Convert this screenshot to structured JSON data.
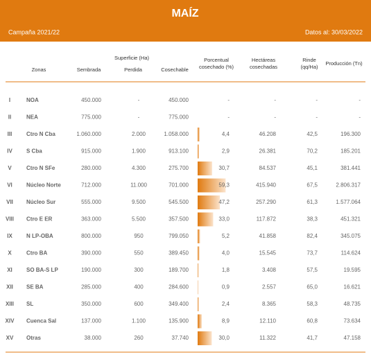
{
  "header": {
    "title": "MAÍZ",
    "campaign": "Campaña 2021/22",
    "date": "Datos al: 30/03/2022"
  },
  "table": {
    "columns": {
      "zonas": "Zonas",
      "sembrada": "Sembrada",
      "superficie": "Superficie (Ha)",
      "perdida": "Perdida",
      "cosechable": "Cosechable",
      "porcentual": [
        "Porcentual",
        "cosechado (%)"
      ],
      "hectareas": [
        "Hectáreas",
        "cosechadas"
      ],
      "rinde": [
        "Rinde",
        "(qq/Ha)"
      ],
      "produccion": "Producción (Tn)"
    },
    "rows": [
      [
        "I",
        "NOA",
        "450.000",
        "-",
        "450.000",
        "-",
        "-",
        "-",
        "-"
      ],
      [
        "II",
        "NEA",
        "775.000",
        "-",
        "775.000",
        "-",
        "-",
        "-",
        "-"
      ],
      [
        "III",
        "Ctro N Cba",
        "1.060.000",
        "2.000",
        "1.058.000",
        {
          "value": 4.4,
          "label": "4,4"
        },
        "46.208",
        "42,5",
        "196.300"
      ],
      [
        "IV",
        "S Cba",
        "915.000",
        "1.900",
        "913.100",
        {
          "value": 2.9,
          "label": "2,9"
        },
        "26.381",
        "70,2",
        "185.201"
      ],
      [
        "V",
        "Ctro N SFe",
        "280.000",
        "4.300",
        "275.700",
        {
          "value": 30.7,
          "label": "30,7"
        },
        "84.537",
        "45,1",
        "381.441"
      ],
      [
        "VI",
        "Núcleo Norte",
        "712.000",
        "11.000",
        "701.000",
        {
          "value": 59.3,
          "label": "59,3"
        },
        "415.940",
        "67,5",
        "2.806.317"
      ],
      [
        "VII",
        "Núcleo Sur",
        "555.000",
        "9.500",
        "545.500",
        {
          "value": 47.2,
          "label": "47,2"
        },
        "257.290",
        "61,3",
        "1.577.064"
      ],
      [
        "VIII",
        "Ctro E ER",
        "363.000",
        "5.500",
        "357.500",
        {
          "value": 33.0,
          "label": "33,0"
        },
        "117.872",
        "38,3",
        "451.321"
      ],
      [
        "IX",
        "N LP-OBA",
        "800.000",
        "950",
        "799.050",
        {
          "value": 5.2,
          "label": "5,2"
        },
        "41.858",
        "82,4",
        "345.075"
      ],
      [
        "X",
        "Ctro BA",
        "390.000",
        "550",
        "389.450",
        {
          "value": 4.0,
          "label": "4,0"
        },
        "15.545",
        "73,7",
        "114.624"
      ],
      [
        "XI",
        "SO BA-S LP",
        "190.000",
        "300",
        "189.700",
        {
          "value": 1.8,
          "label": "1,8"
        },
        "3.408",
        "57,5",
        "19.595"
      ],
      [
        "XII",
        "SE BA",
        "285.000",
        "400",
        "284.600",
        {
          "value": 0.9,
          "label": "0,9"
        },
        "2.557",
        "65,0",
        "16.621"
      ],
      [
        "XIII",
        "SL",
        "350.000",
        "600",
        "349.400",
        {
          "value": 2.4,
          "label": "2,4"
        },
        "8.365",
        "58,3",
        "48.735"
      ],
      [
        "XIV",
        "Cuenca Sal",
        "137.000",
        "1.100",
        "135.900",
        {
          "value": 8.9,
          "label": "8,9"
        },
        "12.110",
        "60,8",
        "73.634"
      ],
      [
        "XV",
        "Otras",
        "38.000",
        "260",
        "37.740",
        {
          "value": 30.0,
          "label": "30,0"
        },
        "11.322",
        "41,7",
        "47.158"
      ]
    ]
  }
}
